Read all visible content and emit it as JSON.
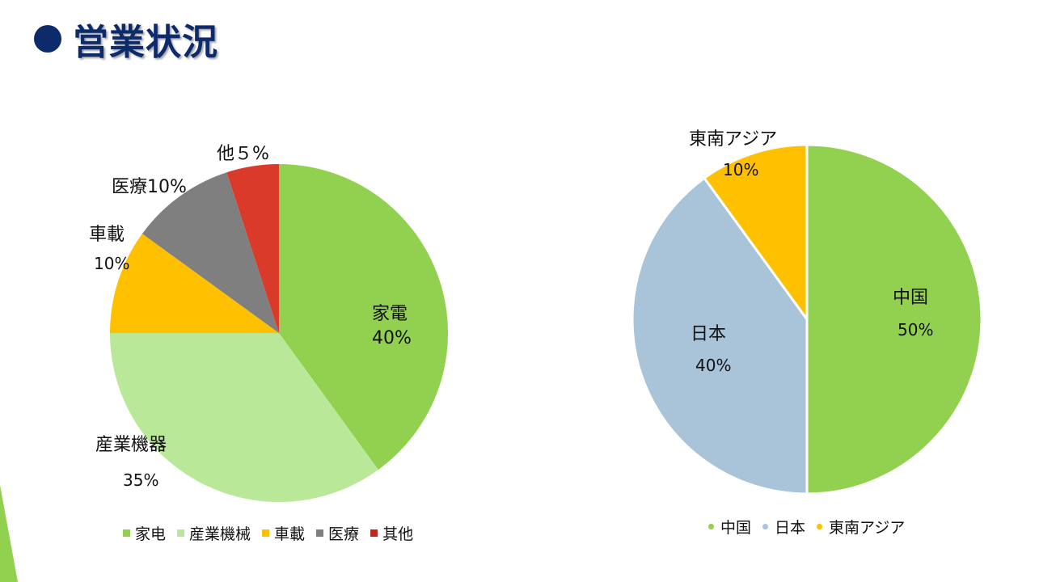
{
  "page": {
    "title": "営業状況"
  },
  "chart_data": [
    {
      "type": "pie",
      "slices": [
        {
          "label": "家電",
          "value": 40,
          "value_label": "40%",
          "color": "#92d050"
        },
        {
          "label": "産業機器",
          "value": 35,
          "value_label": "35%",
          "color": "#b8e898"
        },
        {
          "label": "車載",
          "value": 10,
          "value_label": "10%",
          "color": "#ffc000"
        },
        {
          "label": "医療",
          "value": 10,
          "value_label": "10%",
          "color": "#7f7f7f"
        },
        {
          "label": "他",
          "value": 5,
          "value_label": "5%",
          "color": "#d93a2a"
        }
      ],
      "legend": {
        "position": "bottom",
        "entries": [
          "家电",
          "産業機械",
          "車載",
          "医療",
          "其他"
        ]
      },
      "data_labels": {
        "d0_label": "家電",
        "d0_value": "40%",
        "d1_label": "産業機器",
        "d1_value": "35%",
        "d2_label": "車載",
        "d2_value": "10%",
        "d3_combined": "医療10%",
        "d4_combined": "他５%"
      }
    },
    {
      "type": "pie",
      "slices": [
        {
          "label": "中国",
          "value": 50,
          "value_label": "50%",
          "color": "#92d050"
        },
        {
          "label": "日本",
          "value": 40,
          "value_label": "40%",
          "color": "#a9c4d8"
        },
        {
          "label": "東南アジア",
          "value": 10,
          "value_label": "10%",
          "color": "#ffc000"
        }
      ],
      "legend": {
        "position": "bottom",
        "entries": [
          "中国",
          "日本",
          "東南アジア"
        ]
      }
    }
  ]
}
